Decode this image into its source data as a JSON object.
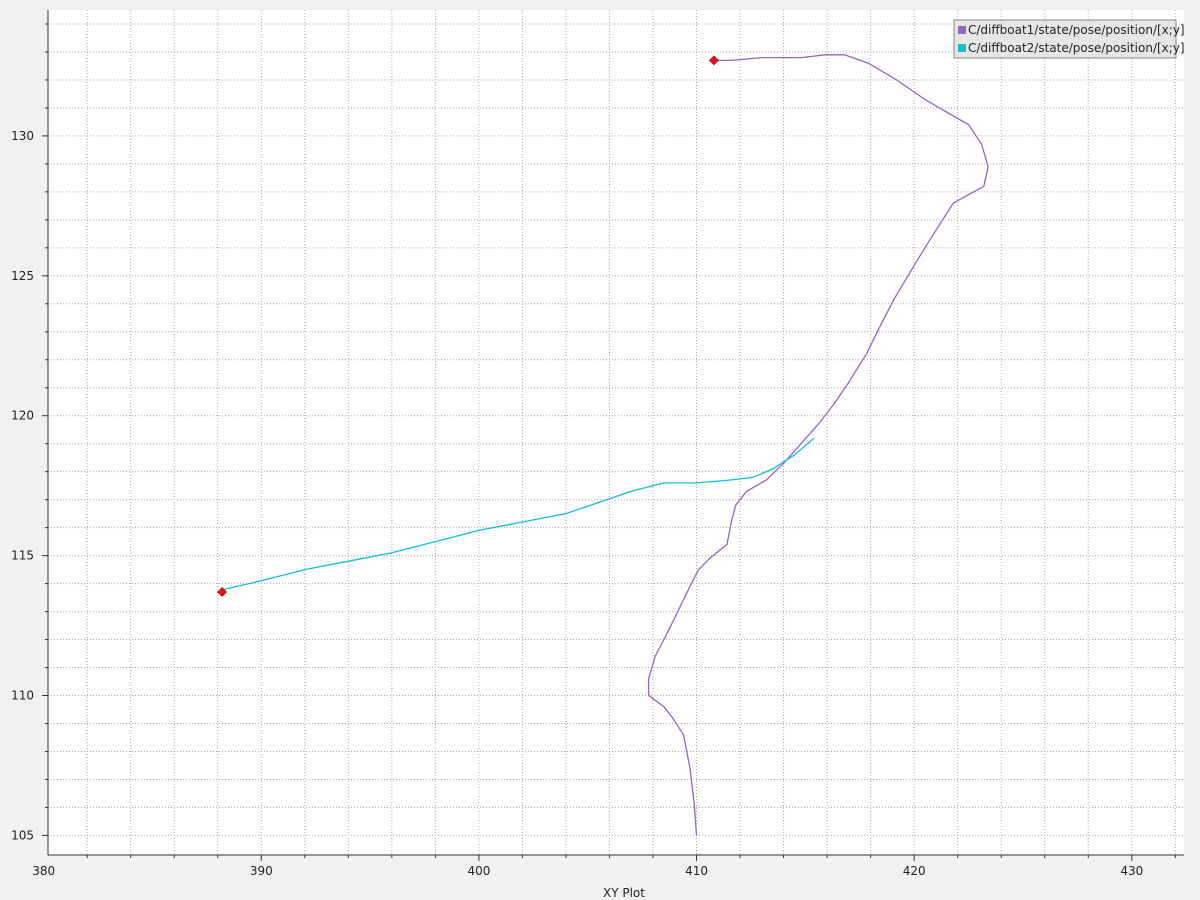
{
  "chart_data": {
    "type": "line",
    "xlabel": "XY Plot",
    "ylabel": "",
    "xlim": [
      380.2,
      432.4
    ],
    "ylim": [
      104.3,
      134.5
    ],
    "x_major_ticks": [
      380,
      390,
      400,
      410,
      420,
      430
    ],
    "x_minor_step": 2,
    "y_major_ticks": [
      105,
      110,
      115,
      120,
      125,
      130
    ],
    "y_minor_step": 1,
    "grid": true,
    "legend_position": "top-right",
    "series": [
      {
        "name": "C/diffboat1/state/pose/position/[x;y]",
        "color": "#9467bd",
        "points": [
          [
            410.0,
            105.0
          ],
          [
            409.9,
            106.1
          ],
          [
            409.7,
            107.4
          ],
          [
            409.4,
            108.6
          ],
          [
            408.9,
            109.2
          ],
          [
            408.5,
            109.6
          ],
          [
            407.8,
            110.0
          ],
          [
            407.8,
            110.6
          ],
          [
            408.1,
            111.4
          ],
          [
            408.7,
            112.3
          ],
          [
            409.2,
            113.1
          ],
          [
            409.7,
            113.9
          ],
          [
            410.1,
            114.5
          ],
          [
            410.6,
            114.9
          ],
          [
            411.4,
            115.4
          ],
          [
            411.6,
            116.2
          ],
          [
            411.8,
            116.8
          ],
          [
            412.3,
            117.3
          ],
          [
            413.2,
            117.7
          ],
          [
            414.0,
            118.3
          ],
          [
            414.8,
            119.0
          ],
          [
            415.6,
            119.7
          ],
          [
            416.3,
            120.4
          ],
          [
            417.0,
            121.2
          ],
          [
            417.8,
            122.2
          ],
          [
            418.5,
            123.3
          ],
          [
            419.1,
            124.2
          ],
          [
            420.1,
            125.5
          ],
          [
            420.9,
            126.5
          ],
          [
            421.8,
            127.6
          ],
          [
            423.2,
            128.2
          ],
          [
            423.4,
            128.9
          ],
          [
            423.1,
            129.7
          ],
          [
            422.5,
            130.4
          ],
          [
            421.6,
            130.8
          ],
          [
            420.5,
            131.3
          ],
          [
            419.2,
            132.0
          ],
          [
            417.9,
            132.6
          ],
          [
            416.8,
            132.9
          ],
          [
            415.9,
            132.9
          ],
          [
            414.8,
            132.8
          ],
          [
            413.0,
            132.8
          ],
          [
            411.6,
            132.7
          ],
          [
            410.8,
            132.7
          ]
        ],
        "start_marker": [
          410.8,
          132.7
        ]
      },
      {
        "name": "C/diffboat2/state/pose/position/[x;y]",
        "color": "#17becf",
        "points": [
          [
            388.3,
            113.8
          ],
          [
            390.0,
            114.1
          ],
          [
            392.0,
            114.5
          ],
          [
            394.0,
            114.8
          ],
          [
            396.0,
            115.1
          ],
          [
            398.0,
            115.5
          ],
          [
            400.0,
            115.9
          ],
          [
            402.0,
            116.2
          ],
          [
            404.0,
            116.5
          ],
          [
            405.5,
            116.9
          ],
          [
            407.0,
            117.3
          ],
          [
            408.5,
            117.6
          ],
          [
            410.0,
            117.6
          ],
          [
            411.5,
            117.7
          ],
          [
            412.6,
            117.8
          ],
          [
            413.5,
            118.1
          ],
          [
            414.5,
            118.6
          ],
          [
            415.4,
            119.2
          ]
        ],
        "start_marker": [
          388.2,
          113.7
        ]
      }
    ]
  }
}
